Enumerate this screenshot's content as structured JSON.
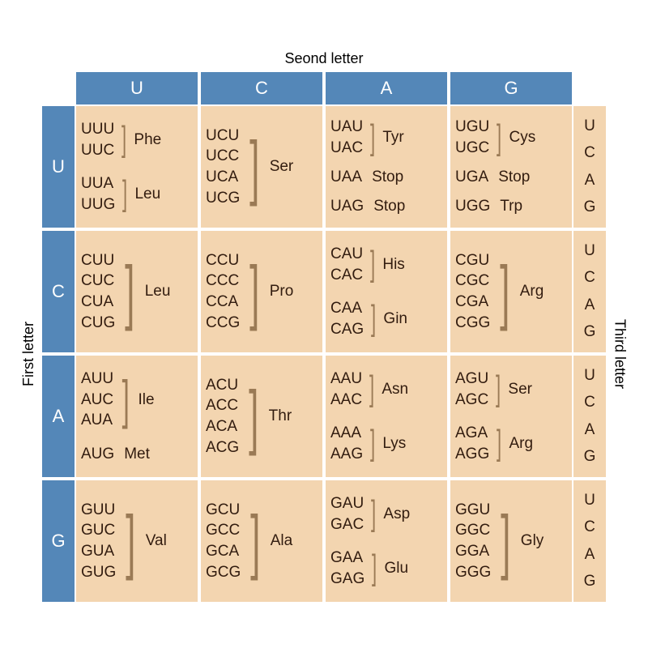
{
  "colors": {
    "header_bg": "#5487b8",
    "cell_bg": "#f3d5b0",
    "text": "#321c0f",
    "bracket": "#9a7a55"
  },
  "axes": {
    "top": "Seond letter",
    "left": "First letter",
    "right": "Third letter"
  },
  "letters": [
    "U",
    "C",
    "A",
    "G"
  ],
  "font_sizes": {
    "axis": 18,
    "header": 22,
    "cell": 19
  },
  "cells": {
    "U": {
      "U": [
        {
          "codons": [
            "UUU",
            "UUC"
          ],
          "aa": "Phe",
          "bracket": true
        },
        {
          "codons": [
            "UUA",
            "UUG"
          ],
          "aa": "Leu",
          "bracket": true
        }
      ],
      "C": [
        {
          "codons": [
            "UCU",
            "UCC",
            "UCA",
            "UCG"
          ],
          "aa": "Ser",
          "bracket": true
        }
      ],
      "A": [
        {
          "codons": [
            "UAU",
            "UAC"
          ],
          "aa": "Tyr",
          "bracket": true
        },
        {
          "codons": [
            "UAA"
          ],
          "aa": "Stop",
          "bracket": false
        },
        {
          "codons": [
            "UAG"
          ],
          "aa": "Stop",
          "bracket": false
        }
      ],
      "G": [
        {
          "codons": [
            "UGU",
            "UGC"
          ],
          "aa": "Cys",
          "bracket": true
        },
        {
          "codons": [
            "UGA"
          ],
          "aa": "Stop",
          "bracket": false
        },
        {
          "codons": [
            "UGG"
          ],
          "aa": "Trp",
          "bracket": false
        }
      ]
    },
    "C": {
      "U": [
        {
          "codons": [
            "CUU",
            "CUC",
            "CUA",
            "CUG"
          ],
          "aa": "Leu",
          "bracket": true
        }
      ],
      "C": [
        {
          "codons": [
            "CCU",
            "CCC",
            "CCA",
            "CCG"
          ],
          "aa": "Pro",
          "bracket": true
        }
      ],
      "A": [
        {
          "codons": [
            "CAU",
            "CAC"
          ],
          "aa": "His",
          "bracket": true
        },
        {
          "codons": [
            "CAA",
            "CAG"
          ],
          "aa": "Gin",
          "bracket": true
        }
      ],
      "G": [
        {
          "codons": [
            "CGU",
            "CGC",
            "CGA",
            "CGG"
          ],
          "aa": "Arg",
          "bracket": true
        }
      ]
    },
    "A": {
      "U": [
        {
          "codons": [
            "AUU",
            "AUC",
            "AUA"
          ],
          "aa": "Ile",
          "bracket": true
        },
        {
          "codons": [
            "AUG"
          ],
          "aa": "Met",
          "bracket": false
        }
      ],
      "C": [
        {
          "codons": [
            "ACU",
            "ACC",
            "ACA",
            "ACG"
          ],
          "aa": "Thr",
          "bracket": true
        }
      ],
      "A": [
        {
          "codons": [
            "AAU",
            "AAC"
          ],
          "aa": "Asn",
          "bracket": true
        },
        {
          "codons": [
            "AAA",
            "AAG"
          ],
          "aa": "Lys",
          "bracket": true
        }
      ],
      "G": [
        {
          "codons": [
            "AGU",
            "AGC"
          ],
          "aa": "Ser",
          "bracket": true
        },
        {
          "codons": [
            "AGA",
            "AGG"
          ],
          "aa": "Arg",
          "bracket": true
        }
      ]
    },
    "G": {
      "U": [
        {
          "codons": [
            "GUU",
            "GUC",
            "GUA",
            "GUG"
          ],
          "aa": "Val",
          "bracket": true
        }
      ],
      "C": [
        {
          "codons": [
            "GCU",
            "GCC",
            "GCA",
            "GCG"
          ],
          "aa": "Ala",
          "bracket": true
        }
      ],
      "A": [
        {
          "codons": [
            "GAU",
            "GAC"
          ],
          "aa": "Asp",
          "bracket": true
        },
        {
          "codons": [
            "GAA",
            "GAG"
          ],
          "aa": "Glu",
          "bracket": true
        }
      ],
      "G": [
        {
          "codons": [
            "GGU",
            "GGC",
            "GGA",
            "GGG"
          ],
          "aa": "Gly",
          "bracket": true
        }
      ]
    }
  }
}
